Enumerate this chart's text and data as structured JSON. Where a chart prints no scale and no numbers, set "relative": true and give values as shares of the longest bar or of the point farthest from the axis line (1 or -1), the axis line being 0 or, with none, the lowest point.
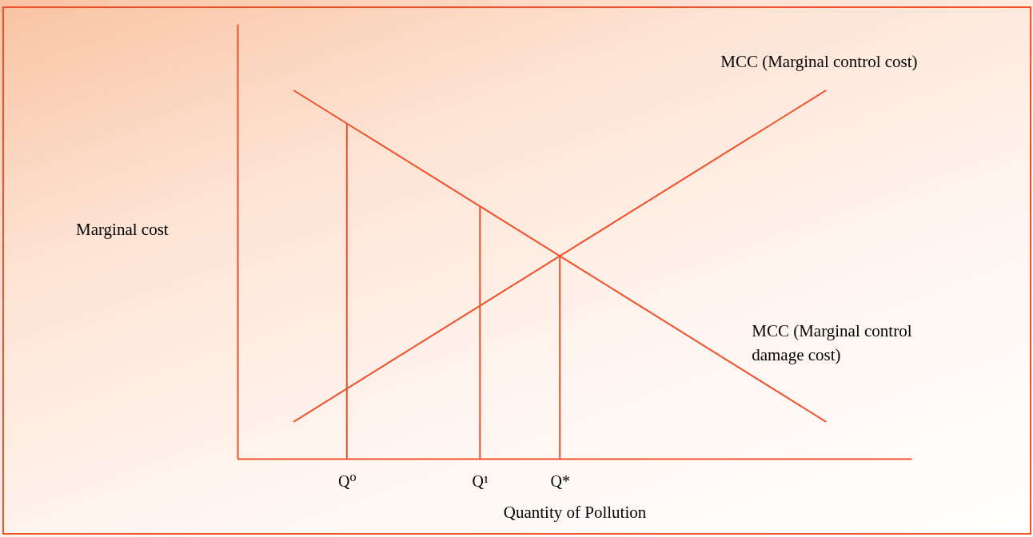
{
  "chart_data": {
    "type": "line",
    "relative": true,
    "xlabel": "Quantity of Pollution",
    "annotations": [
      "Marginal cost"
    ],
    "categories": [
      null,
      null,
      "Q⁰",
      null,
      null,
      null,
      null,
      "Q¹",
      null,
      null,
      "Q*",
      null,
      null,
      null,
      null,
      null,
      null,
      null,
      null,
      null,
      null
    ],
    "grid": false,
    "marker": "none",
    "line_style": "solid",
    "series": [
      {
        "name": "MCC (Marginal control cost)",
        "color": "#f0502a",
        "values": [
          0.1,
          0.145,
          0.19,
          0.235,
          0.28,
          0.325,
          0.37,
          0.415,
          0.46,
          0.505,
          0.55,
          0.595,
          0.64,
          0.685,
          0.73,
          0.775,
          0.82,
          0.865,
          0.91,
          0.955,
          1.0
        ]
      },
      {
        "name": "MCC (Marginal control damage cost)",
        "color": "#f0502a",
        "values": [
          1.0,
          0.955,
          0.91,
          0.865,
          0.82,
          0.775,
          0.73,
          0.685,
          0.64,
          0.595,
          0.55,
          0.505,
          0.46,
          0.415,
          0.37,
          0.325,
          0.28,
          0.235,
          0.19,
          0.145,
          0.1
        ]
      },
      {
        "type": "bar",
        "color": "#f0502a",
        "values": [
          null,
          null,
          0.91,
          null,
          null,
          null,
          null,
          0.685,
          null,
          null,
          0.55,
          null,
          null,
          null,
          null,
          null,
          null,
          null,
          null,
          null,
          null
        ]
      }
    ]
  }
}
